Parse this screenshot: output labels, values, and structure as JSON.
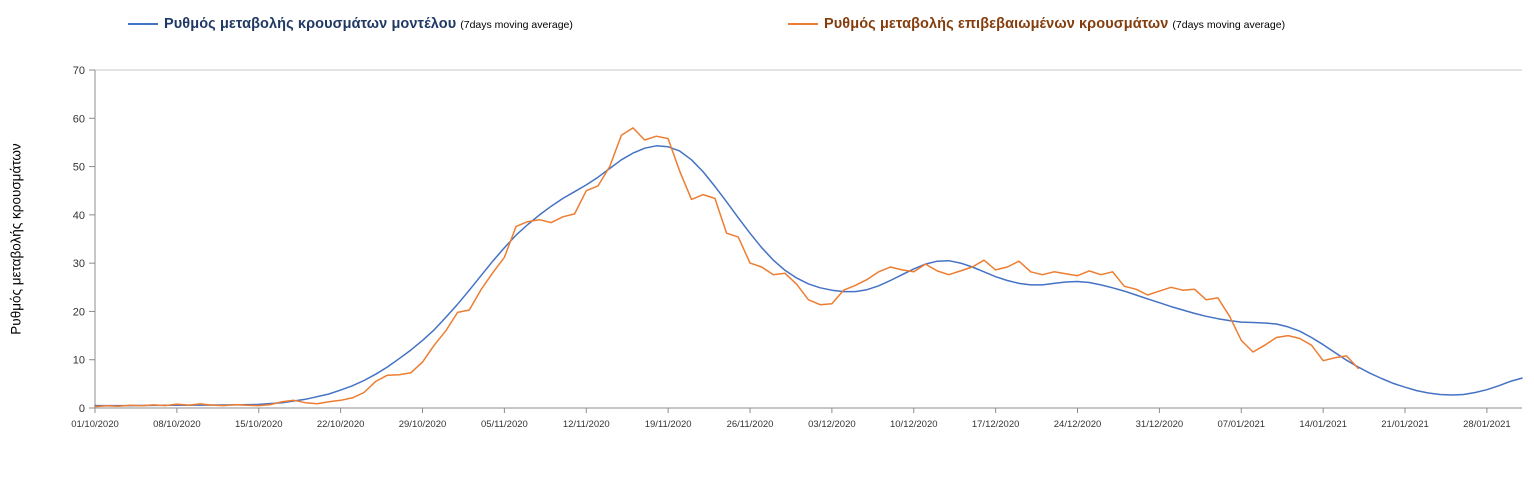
{
  "chart_data": {
    "type": "line",
    "title": "",
    "ylabel": "Ρυθμός μεταβολής κρουσμάτων",
    "xlabel": "",
    "ylim": [
      0,
      70
    ],
    "yticks": [
      0,
      10,
      20,
      30,
      40,
      50,
      60,
      70
    ],
    "xlim": [
      0,
      122
    ],
    "x_unit": "days since 01/10/2020",
    "grid": false,
    "legend_position": "top",
    "axis_color": "#8c8c8c",
    "top_border_color": "#c9c9c9",
    "tick_label_color": "#333333",
    "xticks": [
      {
        "day": 0,
        "label": "01/10/2020"
      },
      {
        "day": 7,
        "label": "08/10/2020"
      },
      {
        "day": 14,
        "label": "15/10/2020"
      },
      {
        "day": 21,
        "label": "22/10/2020"
      },
      {
        "day": 28,
        "label": "29/10/2020"
      },
      {
        "day": 35,
        "label": "05/11/2020"
      },
      {
        "day": 42,
        "label": "12/11/2020"
      },
      {
        "day": 49,
        "label": "19/11/2020"
      },
      {
        "day": 56,
        "label": "26/11/2020"
      },
      {
        "day": 63,
        "label": "03/12/2020"
      },
      {
        "day": 70,
        "label": "10/12/2020"
      },
      {
        "day": 77,
        "label": "17/12/2020"
      },
      {
        "day": 84,
        "label": "24/12/2020"
      },
      {
        "day": 91,
        "label": "31/12/2020"
      },
      {
        "day": 98,
        "label": "07/01/2021"
      },
      {
        "day": 105,
        "label": "14/01/2021"
      },
      {
        "day": 112,
        "label": "21/01/2021"
      },
      {
        "day": 119,
        "label": "28/01/2021"
      }
    ],
    "series": [
      {
        "name": "model",
        "label": "Ρυθμός μεταβολής κρουσμάτων μοντέλου",
        "sublabel": "(7days moving average)",
        "color": "#4472c4",
        "label_color": "#1f3864",
        "points": [
          [
            0,
            0.5
          ],
          [
            3,
            0.5
          ],
          [
            6,
            0.55
          ],
          [
            9,
            0.6
          ],
          [
            12,
            0.65
          ],
          [
            14,
            0.75
          ],
          [
            16,
            1.1
          ],
          [
            18,
            1.8
          ],
          [
            20,
            2.9
          ],
          [
            21,
            3.7
          ],
          [
            22,
            4.6
          ],
          [
            23,
            5.7
          ],
          [
            24,
            7
          ],
          [
            25,
            8.5
          ],
          [
            26,
            10.2
          ],
          [
            27,
            12
          ],
          [
            28,
            14
          ],
          [
            29,
            16.2
          ],
          [
            30,
            18.8
          ],
          [
            31,
            21.5
          ],
          [
            32,
            24.4
          ],
          [
            33,
            27.4
          ],
          [
            34,
            30.4
          ],
          [
            35,
            33.2
          ],
          [
            36,
            35.8
          ],
          [
            37,
            38
          ],
          [
            38,
            40
          ],
          [
            39,
            41.8
          ],
          [
            40,
            43.4
          ],
          [
            41,
            44.8
          ],
          [
            42,
            46.2
          ],
          [
            43,
            47.8
          ],
          [
            44,
            49.6
          ],
          [
            45,
            51.4
          ],
          [
            46,
            52.8
          ],
          [
            47,
            53.8
          ],
          [
            48,
            54.3
          ],
          [
            49,
            54.1
          ],
          [
            50,
            53.2
          ],
          [
            51,
            51.4
          ],
          [
            52,
            48.9
          ],
          [
            53,
            45.9
          ],
          [
            54,
            42.7
          ],
          [
            55,
            39.4
          ],
          [
            56,
            36.2
          ],
          [
            57,
            33.2
          ],
          [
            58,
            30.6
          ],
          [
            59,
            28.5
          ],
          [
            60,
            26.9
          ],
          [
            61,
            25.7
          ],
          [
            62,
            24.9
          ],
          [
            63,
            24.4
          ],
          [
            64,
            24.1
          ],
          [
            65,
            24.1
          ],
          [
            66,
            24.5
          ],
          [
            67,
            25.3
          ],
          [
            68,
            26.4
          ],
          [
            69,
            27.6
          ],
          [
            70,
            28.8
          ],
          [
            71,
            29.8
          ],
          [
            72,
            30.4
          ],
          [
            73,
            30.5
          ],
          [
            74,
            30
          ],
          [
            75,
            29.2
          ],
          [
            76,
            28.2
          ],
          [
            77,
            27.2
          ],
          [
            78,
            26.4
          ],
          [
            79,
            25.8
          ],
          [
            80,
            25.5
          ],
          [
            81,
            25.5
          ],
          [
            82,
            25.8
          ],
          [
            83,
            26.1
          ],
          [
            84,
            26.2
          ],
          [
            85,
            26
          ],
          [
            86,
            25.5
          ],
          [
            87,
            24.9
          ],
          [
            88,
            24.2
          ],
          [
            89,
            23.4
          ],
          [
            90,
            22.6
          ],
          [
            91,
            21.8
          ],
          [
            92,
            21
          ],
          [
            93,
            20.3
          ],
          [
            94,
            19.6
          ],
          [
            95,
            19
          ],
          [
            96,
            18.5
          ],
          [
            97,
            18.1
          ],
          [
            98,
            17.8
          ],
          [
            99,
            17.7
          ],
          [
            100,
            17.6
          ],
          [
            101,
            17.4
          ],
          [
            102,
            16.8
          ],
          [
            103,
            15.9
          ],
          [
            104,
            14.6
          ],
          [
            105,
            13.1
          ],
          [
            106,
            11.5
          ],
          [
            107,
            9.9
          ],
          [
            108,
            8.5
          ],
          [
            109,
            7.2
          ],
          [
            110,
            6.1
          ],
          [
            111,
            5.1
          ],
          [
            112,
            4.3
          ],
          [
            113,
            3.6
          ],
          [
            114,
            3.1
          ],
          [
            115,
            2.8
          ],
          [
            116,
            2.7
          ],
          [
            117,
            2.8
          ],
          [
            118,
            3.2
          ],
          [
            119,
            3.8
          ],
          [
            120,
            4.6
          ],
          [
            121,
            5.5
          ],
          [
            122,
            6.2
          ]
        ]
      },
      {
        "name": "confirmed",
        "label": "Ρυθμός μεταβολής επιβεβαιωμένων κρουσμάτων",
        "sublabel": "(7days moving average)",
        "color": "#ed7d31",
        "label_color": "#843c0c",
        "points": [
          [
            0,
            0.3
          ],
          [
            1,
            0.45
          ],
          [
            2,
            0.35
          ],
          [
            3,
            0.55
          ],
          [
            4,
            0.45
          ],
          [
            5,
            0.65
          ],
          [
            6,
            0.5
          ],
          [
            7,
            0.8
          ],
          [
            8,
            0.6
          ],
          [
            9,
            0.85
          ],
          [
            10,
            0.6
          ],
          [
            11,
            0.5
          ],
          [
            12,
            0.7
          ],
          [
            13,
            0.55
          ],
          [
            14,
            0.5
          ],
          [
            15,
            0.7
          ],
          [
            16,
            1.3
          ],
          [
            17,
            1.6
          ],
          [
            18,
            1.1
          ],
          [
            19,
            0.9
          ],
          [
            20,
            1.3
          ],
          [
            21,
            1.6
          ],
          [
            22,
            2.1
          ],
          [
            23,
            3.2
          ],
          [
            24,
            5.5
          ],
          [
            25,
            6.8
          ],
          [
            26,
            6.9
          ],
          [
            27,
            7.3
          ],
          [
            28,
            9.5
          ],
          [
            29,
            13
          ],
          [
            30,
            16
          ],
          [
            31,
            19.8
          ],
          [
            32,
            20.3
          ],
          [
            33,
            24.5
          ],
          [
            34,
            28
          ],
          [
            35,
            31.2
          ],
          [
            36,
            37.6
          ],
          [
            37,
            38.6
          ],
          [
            38,
            39
          ],
          [
            39,
            38.4
          ],
          [
            40,
            39.6
          ],
          [
            41,
            40.2
          ],
          [
            42,
            45
          ],
          [
            43,
            46
          ],
          [
            44,
            50
          ],
          [
            45,
            56.5
          ],
          [
            46,
            58
          ],
          [
            47,
            55.5
          ],
          [
            48,
            56.3
          ],
          [
            49,
            55.8
          ],
          [
            50,
            49
          ],
          [
            51,
            43.2
          ],
          [
            52,
            44.2
          ],
          [
            53,
            43.4
          ],
          [
            54,
            36.2
          ],
          [
            55,
            35.4
          ],
          [
            56,
            30
          ],
          [
            57,
            29.2
          ],
          [
            58,
            27.6
          ],
          [
            59,
            27.9
          ],
          [
            60,
            25.6
          ],
          [
            61,
            22.4
          ],
          [
            62,
            21.4
          ],
          [
            63,
            21.6
          ],
          [
            64,
            24.4
          ],
          [
            65,
            25.4
          ],
          [
            66,
            26.6
          ],
          [
            67,
            28.2
          ],
          [
            68,
            29.2
          ],
          [
            69,
            28.6
          ],
          [
            70,
            28.2
          ],
          [
            71,
            29.8
          ],
          [
            72,
            28.4
          ],
          [
            73,
            27.6
          ],
          [
            74,
            28.4
          ],
          [
            75,
            29.2
          ],
          [
            76,
            30.6
          ],
          [
            77,
            28.6
          ],
          [
            78,
            29.2
          ],
          [
            79,
            30.4
          ],
          [
            80,
            28.2
          ],
          [
            81,
            27.6
          ],
          [
            82,
            28.2
          ],
          [
            83,
            27.8
          ],
          [
            84,
            27.4
          ],
          [
            85,
            28.4
          ],
          [
            86,
            27.6
          ],
          [
            87,
            28.2
          ],
          [
            88,
            25.2
          ],
          [
            89,
            24.6
          ],
          [
            90,
            23.4
          ],
          [
            91,
            24.2
          ],
          [
            92,
            25
          ],
          [
            93,
            24.4
          ],
          [
            94,
            24.6
          ],
          [
            95,
            22.4
          ],
          [
            96,
            22.8
          ],
          [
            97,
            19
          ],
          [
            98,
            14
          ],
          [
            99,
            11.6
          ],
          [
            100,
            13
          ],
          [
            101,
            14.6
          ],
          [
            102,
            15
          ],
          [
            103,
            14.4
          ],
          [
            104,
            13
          ],
          [
            105,
            9.8
          ],
          [
            106,
            10.4
          ],
          [
            107,
            10.8
          ],
          [
            108,
            8.2
          ]
        ]
      }
    ]
  }
}
